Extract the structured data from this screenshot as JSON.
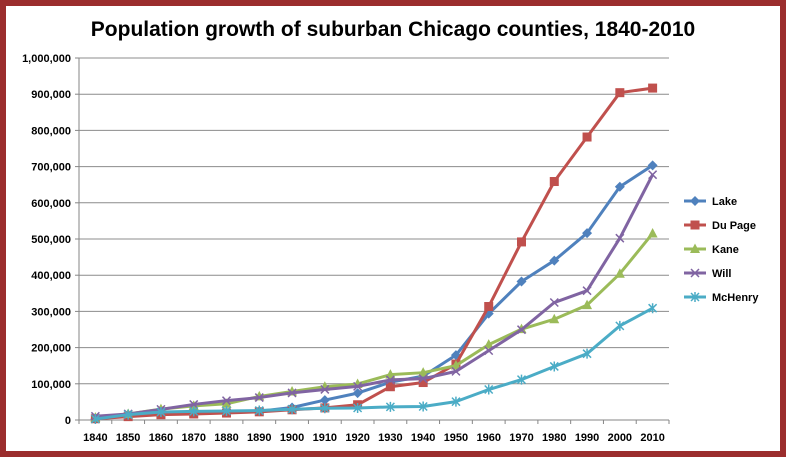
{
  "chart_data": {
    "type": "line",
    "title": "Population growth of suburban Chicago counties, 1840-2010",
    "xlabel": "",
    "ylabel": "",
    "ylim": [
      0,
      1000000
    ],
    "ytick_step": 100000,
    "grid": true,
    "legend_position": "right",
    "x": [
      1840,
      1850,
      1860,
      1870,
      1880,
      1890,
      1900,
      1910,
      1920,
      1930,
      1940,
      1950,
      1960,
      1970,
      1980,
      1990,
      2000,
      2010
    ],
    "series": [
      {
        "name": "Lake",
        "color": "#4f81bd",
        "marker": "diamond",
        "values": [
          2600,
          14200,
          18300,
          21000,
          21300,
          24200,
          34500,
          55000,
          74300,
          104400,
          121100,
          179100,
          293700,
          382600,
          440400,
          516400,
          644400,
          703500
        ]
      },
      {
        "name": "Du Page",
        "color": "#c0504d",
        "marker": "square",
        "values": [
          3500,
          9300,
          14700,
          16700,
          19200,
          22600,
          28200,
          33400,
          42100,
          91900,
          103500,
          154600,
          313500,
          491900,
          658800,
          781700,
          904200,
          916900
        ]
      },
      {
        "name": "Kane",
        "color": "#9bbb59",
        "marker": "triangle",
        "values": [
          6500,
          16700,
          30100,
          39100,
          44900,
          65100,
          78800,
          91900,
          99500,
          125300,
          130700,
          150400,
          208200,
          251000,
          278400,
          317500,
          404100,
          515300
        ]
      },
      {
        "name": "Will",
        "color": "#8064a2",
        "marker": "x",
        "values": [
          10200,
          16700,
          29300,
          43000,
          53400,
          62000,
          74800,
          84400,
          92900,
          110700,
          114200,
          134300,
          191600,
          249500,
          324500,
          357300,
          502300,
          677600
        ]
      },
      {
        "name": "McHenry",
        "color": "#4bacc6",
        "marker": "star",
        "values": [
          2600,
          14900,
          22100,
          23800,
          24900,
          26100,
          29800,
          32500,
          33200,
          36200,
          37300,
          50700,
          84200,
          111600,
          147900,
          183200,
          260100,
          308800
        ]
      }
    ]
  }
}
